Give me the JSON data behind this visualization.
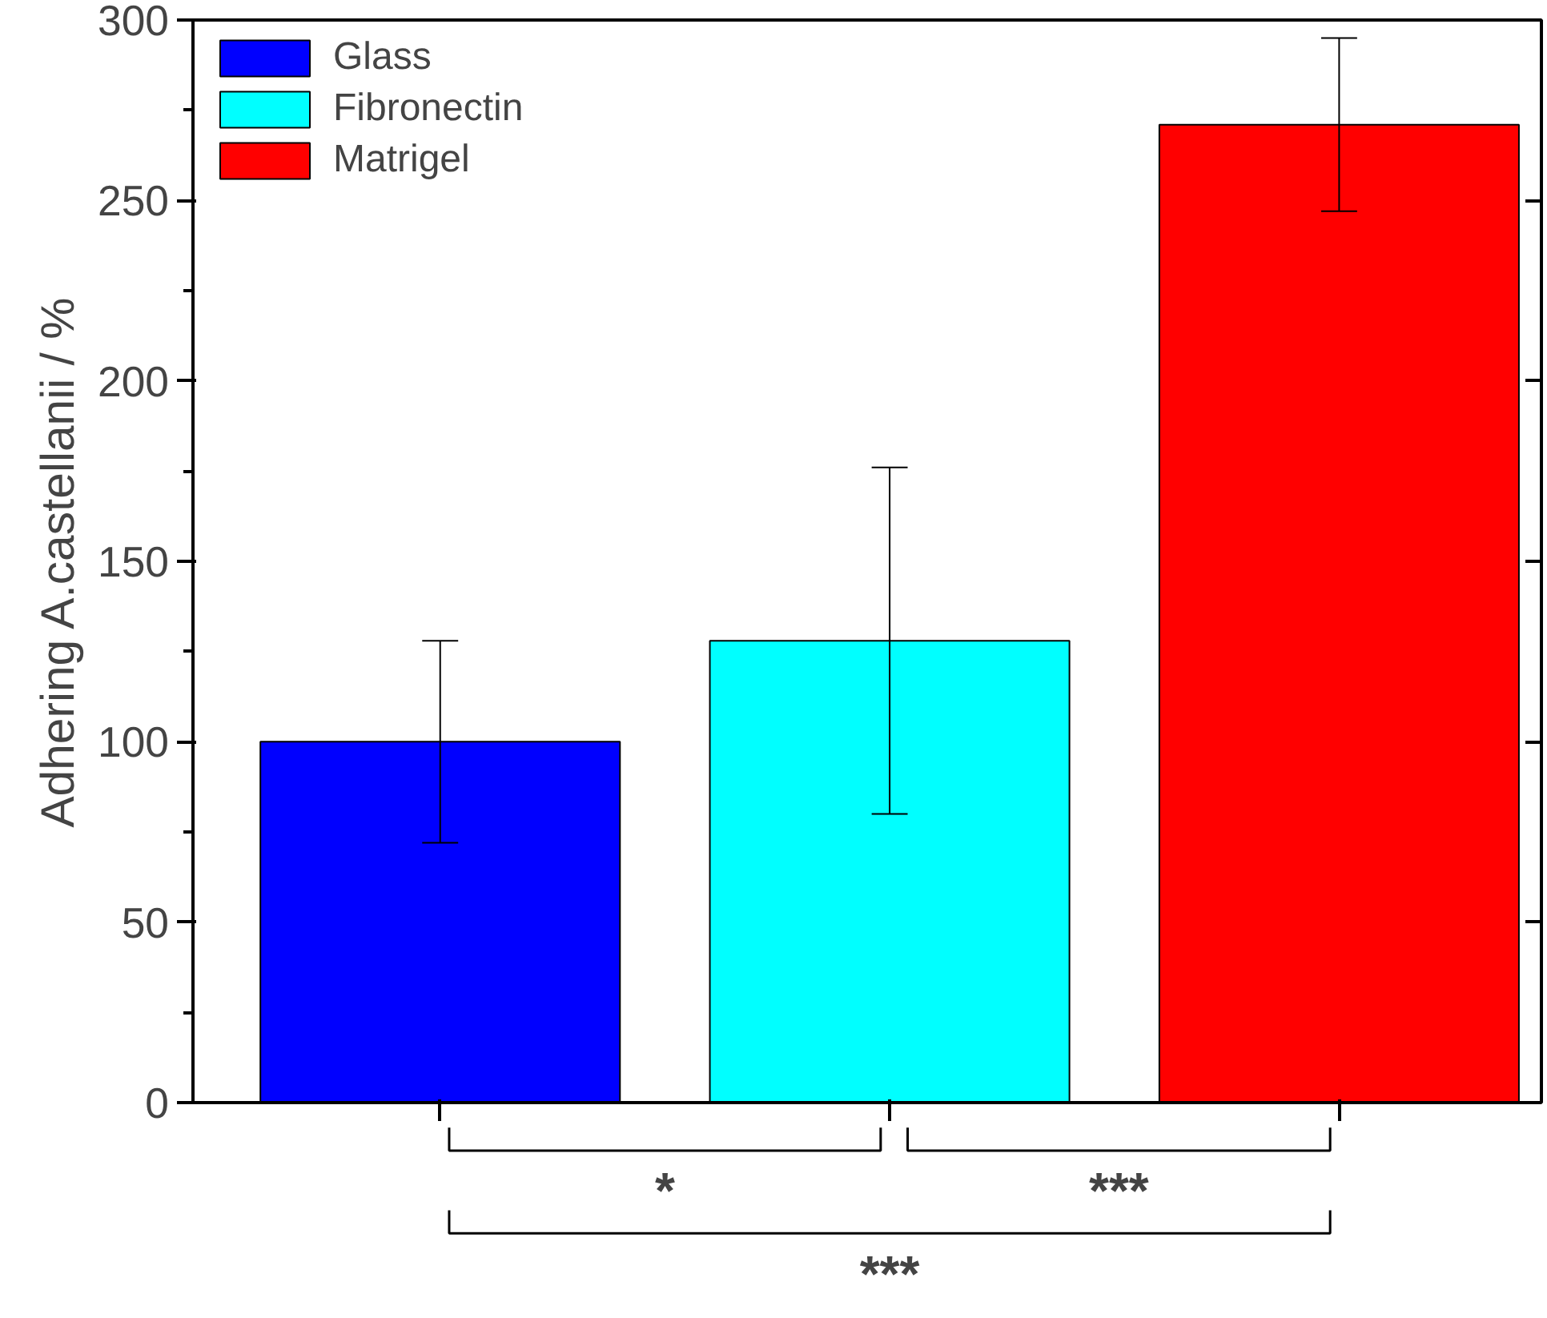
{
  "chart_data": {
    "type": "bar",
    "ylabel": "Adhering A.castellanii / %",
    "categories": [
      null,
      null,
      null
    ],
    "series": [
      {
        "name": "Glass",
        "color": "#0000ff",
        "values": [
          100,
          null,
          null
        ],
        "errors": [
          [
            72,
            128
          ],
          null,
          null
        ]
      },
      {
        "name": "Fibronectin",
        "color": "#00ffff",
        "values": [
          null,
          128,
          null
        ],
        "errors": [
          null,
          [
            80,
            176
          ],
          null
        ]
      },
      {
        "name": "Matrigel",
        "color": "#ff0000",
        "values": [
          null,
          null,
          271
        ],
        "errors": [
          null,
          null,
          [
            247,
            295
          ]
        ]
      }
    ],
    "ylim": [
      0,
      300
    ],
    "yticks": [
      0,
      50,
      100,
      150,
      200,
      250,
      300
    ],
    "annotations": [
      "*",
      "***",
      "***"
    ],
    "legend": "top left",
    "grid": false
  }
}
